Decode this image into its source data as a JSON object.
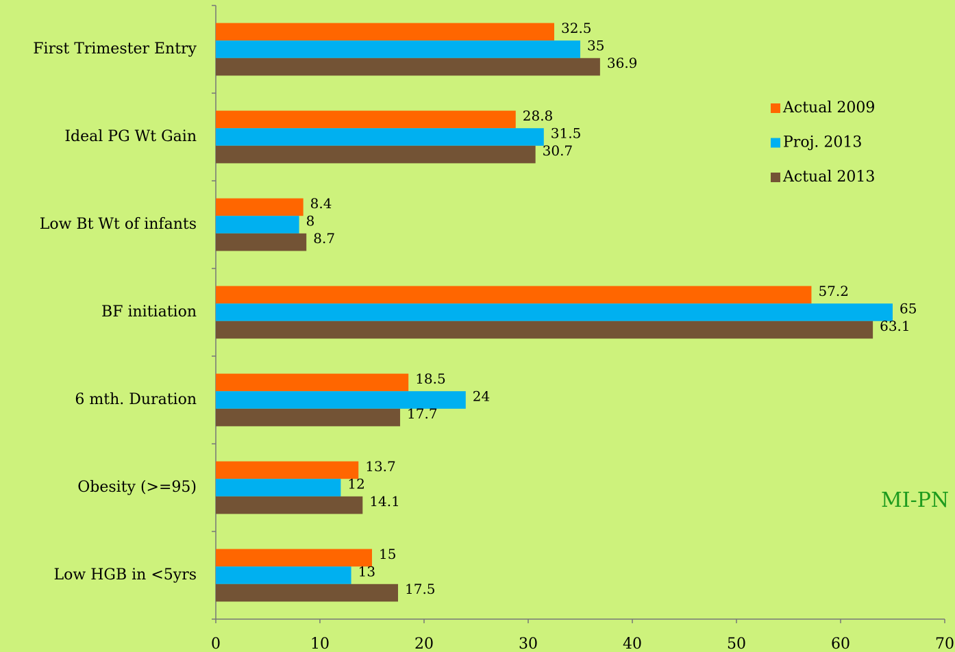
{
  "chart_data": {
    "type": "barh",
    "categories": [
      "First Trimester Entry",
      "Ideal PG Wt Gain",
      "Low Bt Wt of infants",
      "BF initiation",
      "6 mth. Duration",
      "Obesity (>=95)",
      "Low HGB in <5yrs"
    ],
    "series": [
      {
        "name": "Actual 2009",
        "color": "#ff6600",
        "values": [
          32.5,
          28.8,
          8.4,
          57.2,
          18.5,
          13.7,
          15
        ]
      },
      {
        "name": "Proj. 2013",
        "color": "#00b0f0",
        "values": [
          35,
          31.5,
          8,
          65,
          24,
          12,
          13
        ]
      },
      {
        "name": "Actual 2013",
        "color": "#735335",
        "values": [
          36.9,
          30.7,
          8.7,
          63.1,
          17.7,
          14.1,
          17.5
        ]
      }
    ],
    "xlim": [
      0,
      70
    ],
    "xticks": [
      0,
      10,
      20,
      30,
      40,
      50,
      60,
      70
    ],
    "legend": "right",
    "annotation": "MI-PN"
  }
}
